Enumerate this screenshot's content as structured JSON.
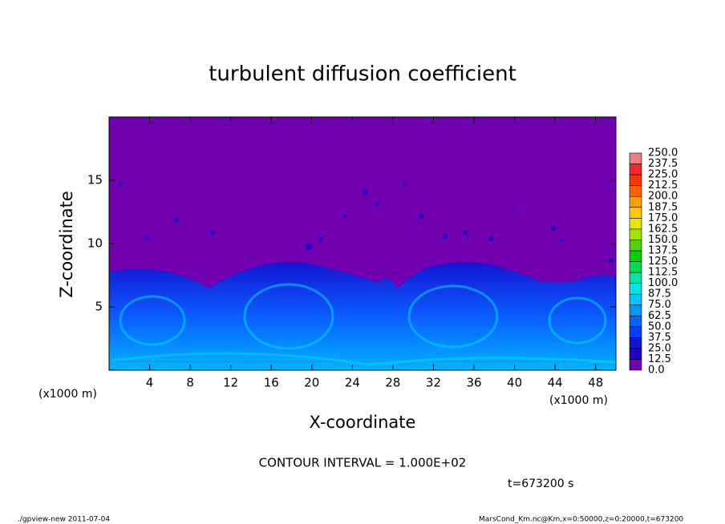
{
  "chart_data": {
    "type": "contour",
    "title": "turbulent diffusion coefficient",
    "xlabel": "X-coordinate",
    "ylabel": "Z-coordinate",
    "x_unit_label": "(x1000 m)",
    "xlim": [
      0,
      50
    ],
    "ylim": [
      0,
      20
    ],
    "xticks": [
      4,
      8,
      12,
      16,
      20,
      24,
      28,
      32,
      36,
      40,
      44,
      48
    ],
    "yticks": [
      5,
      10,
      15
    ],
    "colorbar": {
      "levels": [
        {
          "value": 0,
          "label": "0.0"
        },
        12.5,
        {
          "value": 25,
          "label": "25.0"
        },
        37.5,
        {
          "value": 50,
          "label": "50.0"
        },
        62.5,
        {
          "value": 75,
          "label": "75.0"
        },
        87.5,
        {
          "value": 100,
          "label": "100.0"
        },
        112.5,
        {
          "value": 125,
          "label": "125.0"
        },
        137.5,
        {
          "value": 150,
          "label": "150.0"
        },
        162.5,
        {
          "value": 175,
          "label": "175.0"
        },
        187.5,
        {
          "value": 200,
          "label": "200.0"
        },
        212.5,
        {
          "value": 225,
          "label": "225.0"
        },
        237.5,
        {
          "value": 250,
          "label": "250.0"
        }
      ],
      "colors": [
        "#7000b0",
        "#1e00c8",
        "#1414d2",
        "#0a3cff",
        "#0064ff",
        "#0096ff",
        "#00c8ff",
        "#00e6e6",
        "#00e6a0",
        "#00dc50",
        "#00d200",
        "#50d200",
        "#a0e600",
        "#e6e600",
        "#ffc800",
        "#ffa000",
        "#ff6400",
        "#ff3200",
        "#f02828",
        "#f08080"
      ]
    },
    "annotations": {
      "contour_interval": "CONTOUR INTERVAL = 1.000E+02",
      "time": "t=673200 s"
    }
  },
  "footer": {
    "left": "./gpview-new  2011-07-04",
    "right": "MarsCond_Km.nc@Km,x=0:50000,z=0:20000,t=673200"
  }
}
